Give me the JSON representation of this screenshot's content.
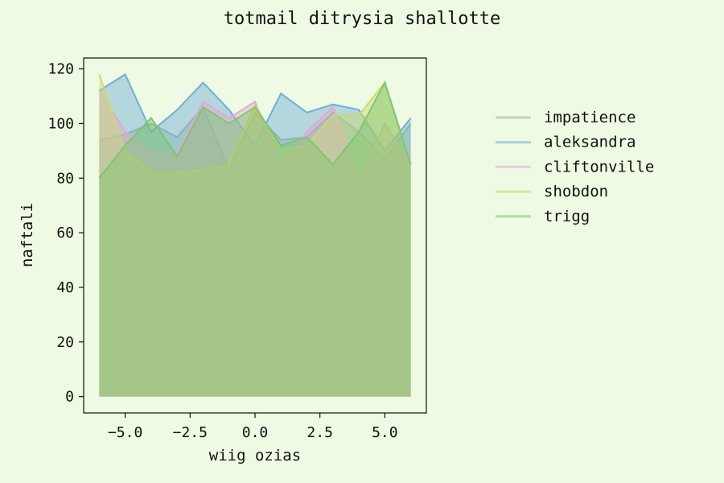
{
  "chart_data": {
    "type": "area",
    "title": "totmail ditrysia shallotte",
    "xlabel": "wiig ozias",
    "ylabel": "naftali",
    "x": [
      -6,
      -5,
      -4,
      -3,
      -2,
      -1,
      0,
      1,
      2,
      3,
      4,
      5,
      6
    ],
    "xlim": [
      -6.6,
      6.6
    ],
    "ylim": [
      -6,
      124
    ],
    "xticks": [
      -5.0,
      -2.5,
      0.0,
      2.5,
      5.0
    ],
    "xtick_labels": [
      "−5.0",
      "−2.5",
      "0.0",
      "2.5",
      "5.0"
    ],
    "yticks": [
      0,
      20,
      40,
      60,
      80,
      100,
      120
    ],
    "ytick_labels": [
      "0",
      "20",
      "40",
      "60",
      "80",
      "100",
      "120"
    ],
    "grid": false,
    "legend_position": "right",
    "series": [
      {
        "name": "impatience",
        "color": "#9db59a",
        "values": [
          94,
          96,
          100,
          95,
          106,
          83,
          104,
          94,
          95,
          104,
          97,
          87,
          100
        ]
      },
      {
        "name": "aleksandra",
        "color": "#6aadd5",
        "values": [
          112,
          118,
          97,
          105,
          115,
          105,
          92,
          111,
          104,
          107,
          105,
          90,
          102
        ]
      },
      {
        "name": "cliftonville",
        "color": "#e6a6cf",
        "values": [
          112,
          97,
          89,
          89,
          108,
          102,
          108,
          85,
          97,
          106,
          79,
          100,
          85
        ]
      },
      {
        "name": "shobdon",
        "color": "#cbd96a",
        "values": [
          118,
          90,
          82,
          82,
          83,
          85,
          107,
          90,
          92,
          103,
          103,
          115,
          85
        ]
      },
      {
        "name": "trigg",
        "color": "#7dc56a",
        "values": [
          80,
          92,
          102,
          88,
          106,
          100,
          106,
          92,
          95,
          85,
          97,
          115,
          85
        ]
      }
    ]
  }
}
